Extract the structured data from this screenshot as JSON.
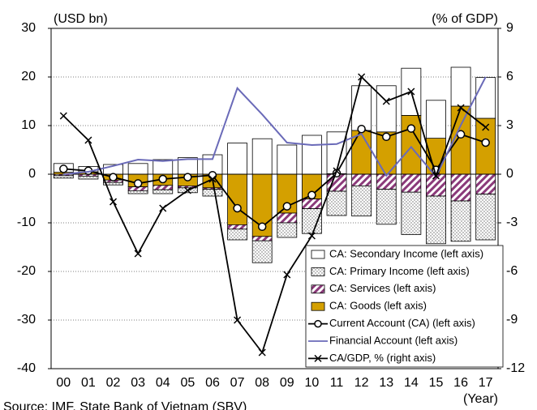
{
  "chart_data": {
    "type": "bar",
    "y_label": "(USD bn)",
    "y2_label": "(% of GDP)",
    "x_label": "(Year)",
    "source": "Source: IMF, State Bank of Vietnam (SBV)",
    "categories": [
      "00",
      "01",
      "02",
      "03",
      "04",
      "05",
      "06",
      "07",
      "08",
      "09",
      "10",
      "11",
      "12",
      "13",
      "14",
      "15",
      "16",
      "17"
    ],
    "ylim": [
      -40,
      30
    ],
    "yticks": [
      -40,
      -30,
      -20,
      -10,
      0,
      10,
      20,
      30
    ],
    "y2lim": [
      -12,
      9
    ],
    "y2ticks": [
      -12,
      -9,
      -6,
      -3,
      0,
      3,
      6,
      9
    ],
    "grid": true,
    "legend": "lower right",
    "series": [
      {
        "name": "CA: Secondary Income (left axis)",
        "type": "bar",
        "pattern": "none",
        "color": "#ffffff",
        "values": [
          1.8,
          1.1,
          2.0,
          2.2,
          3.0,
          3.4,
          4.0,
          6.4,
          7.3,
          6.0,
          8.0,
          8.6,
          9.2,
          9.5,
          9.7,
          7.8,
          8.0,
          8.4
        ]
      },
      {
        "name": "CA: Primary Income (left axis)",
        "type": "bar",
        "pattern": "dots",
        "color": "#808080",
        "values": [
          -0.5,
          -0.6,
          -0.5,
          -0.6,
          -0.8,
          -1.0,
          -1.4,
          -2.2,
          -4.5,
          -3.0,
          -5.1,
          -5.0,
          -6.2,
          -7.2,
          -8.7,
          -9.8,
          -8.3,
          -9.4
        ]
      },
      {
        "name": "CA: Services (left axis)",
        "type": "bar",
        "pattern": "hatch",
        "color": "#8b3a7a",
        "values": [
          -0.3,
          -0.4,
          -0.5,
          -0.8,
          -0.9,
          -0.4,
          -0.3,
          -0.9,
          -0.9,
          -2.0,
          -2.0,
          -3.5,
          -2.4,
          -3.1,
          -3.7,
          -4.5,
          -5.5,
          -4.1
        ]
      },
      {
        "name": "CA: Goods (left axis)",
        "type": "bar",
        "pattern": "none",
        "color": "#d4a000",
        "values": [
          0.4,
          0.5,
          -1.2,
          -2.6,
          -2.3,
          -2.4,
          -2.8,
          -10.4,
          -12.8,
          -8.0,
          -5.1,
          0.1,
          9.0,
          8.7,
          12.1,
          7.4,
          14.0,
          11.5
        ]
      },
      {
        "name": "Current Account (CA) (left axis)",
        "type": "line",
        "marker": "circle",
        "color": "#000000",
        "values": [
          1.1,
          0.7,
          -0.6,
          -1.9,
          -1.0,
          -0.6,
          -0.2,
          -7.0,
          -10.8,
          -6.6,
          -4.3,
          0.2,
          9.3,
          7.7,
          9.4,
          0.9,
          8.2,
          6.5
        ]
      },
      {
        "name": "Financial Account (left axis)",
        "type": "line",
        "marker": "none",
        "color": "#6a6ab8",
        "values": [
          0.0,
          0.5,
          1.7,
          3.0,
          2.7,
          3.1,
          3.1,
          17.7,
          12.3,
          6.5,
          6.0,
          6.2,
          8.3,
          -0.3,
          5.6,
          -0.5,
          10.1,
          20.0
        ]
      },
      {
        "name": "CA/GDP, % (right axis)",
        "type": "line",
        "marker": "x",
        "axis": "y2",
        "color": "#000000",
        "values": [
          3.6,
          2.1,
          -1.7,
          -4.9,
          -2.1,
          -1.0,
          -0.3,
          -9.0,
          -11.0,
          -6.2,
          -3.8,
          0.2,
          6.0,
          4.5,
          5.1,
          -0.1,
          4.1,
          2.9
        ]
      }
    ]
  }
}
